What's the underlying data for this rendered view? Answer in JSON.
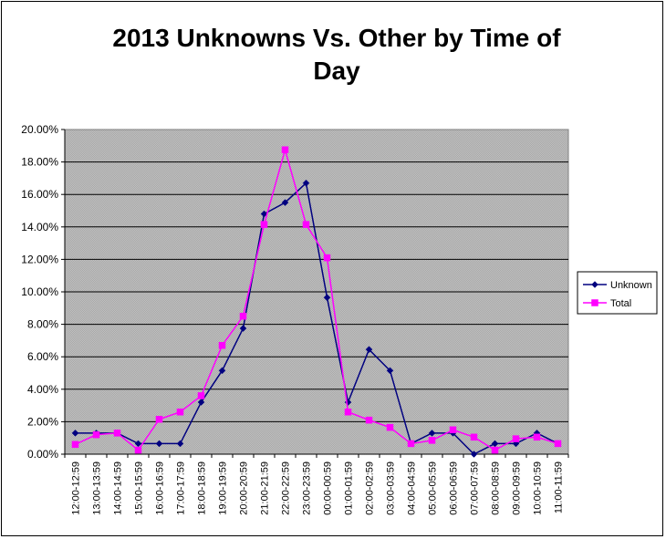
{
  "chart_data": {
    "type": "line",
    "title": "2013 Unknowns Vs. Other by Time of Day",
    "title_lines": [
      "2013 Unknowns Vs. Other by Time of",
      "Day"
    ],
    "xlabel": "",
    "ylabel": "",
    "ylim": [
      0,
      0.2
    ],
    "y_ticks": [
      "0.00%",
      "2.00%",
      "4.00%",
      "6.00%",
      "8.00%",
      "10.00%",
      "12.00%",
      "14.00%",
      "16.00%",
      "18.00%",
      "20.00%"
    ],
    "grid": true,
    "plot_background": "#c0c0c0",
    "legend_position": "right",
    "categories": [
      "12:00-12:59",
      "13:00-13:59",
      "14:00-14:59",
      "15:00-15:59",
      "16:00-16:59",
      "17:00-17:59",
      "18:00-18:59",
      "19:00-19:59",
      "20:00-20:59",
      "21:00-21:59",
      "22:00-22:59",
      "23:00-23:59",
      "00:00-00:59",
      "01:00-01:59",
      "02:00-02:59",
      "03:00-03:59",
      "04:00-04:59",
      "05:00-05:59",
      "06:00-06:59",
      "07:00-07:59",
      "08:00-08:59",
      "09:00-09:59",
      "10:00-10:59",
      "11:00-11:59"
    ],
    "series": [
      {
        "name": "Unknown",
        "color": "#000080",
        "marker": "diamond",
        "values": [
          0.013,
          0.013,
          0.013,
          0.0065,
          0.0065,
          0.0065,
          0.032,
          0.0515,
          0.0775,
          0.148,
          0.155,
          0.167,
          0.0965,
          0.032,
          0.0645,
          0.0515,
          0.0065,
          0.013,
          0.013,
          0.0,
          0.0065,
          0.0065,
          0.013,
          0.0065
        ]
      },
      {
        "name": "Total",
        "color": "#ff00ff",
        "marker": "square",
        "values": [
          0.006,
          0.012,
          0.013,
          0.0025,
          0.0215,
          0.026,
          0.036,
          0.067,
          0.085,
          0.1415,
          0.1875,
          0.1415,
          0.121,
          0.026,
          0.021,
          0.0165,
          0.0065,
          0.0085,
          0.015,
          0.0105,
          0.0025,
          0.0095,
          0.0105,
          0.0065
        ]
      }
    ]
  }
}
